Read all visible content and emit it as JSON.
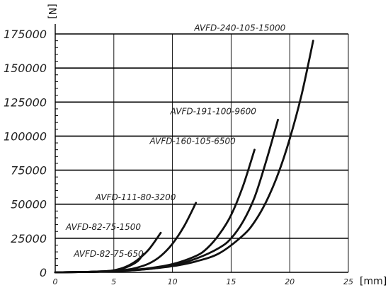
{
  "chart_data": {
    "type": "line",
    "title": "",
    "ylabel": "[N]",
    "xlabel": "[mm]",
    "xlim": [
      0,
      25
    ],
    "ylim": [
      0,
      175000
    ],
    "xticks": [
      0,
      5,
      10,
      15,
      20,
      25
    ],
    "yticks": [
      0,
      25000,
      50000,
      75000,
      100000,
      125000,
      150000,
      175000
    ],
    "ytick_labels": [
      "0",
      "25000",
      "50000",
      "75000",
      "100000",
      "125000",
      "150000",
      "175000"
    ],
    "xtick_labels": [
      "0",
      "5",
      "10",
      "15",
      "20",
      "25"
    ],
    "grid": true,
    "legend": "none",
    "series": [
      {
        "name": "AVFD-82-75-650",
        "x": [
          0,
          2,
          4,
          5,
          6,
          7,
          7.5
        ],
        "y": [
          0,
          200,
          500,
          1200,
          3500,
          8000,
          13500
        ]
      },
      {
        "name": "AVFD-82-75-1500",
        "x": [
          0,
          2,
          4,
          5,
          6,
          7,
          8,
          9
        ],
        "y": [
          0,
          200,
          700,
          1500,
          4000,
          9000,
          17000,
          29000
        ]
      },
      {
        "name": "AVFD-111-80-3200",
        "x": [
          0,
          2,
          4,
          6,
          7,
          8,
          9,
          10,
          11,
          12
        ],
        "y": [
          0,
          200,
          700,
          1800,
          3500,
          6500,
          12000,
          21000,
          34000,
          51000
        ]
      },
      {
        "name": "AVFD-160-105-6500",
        "x": [
          0,
          2,
          4,
          6,
          8,
          10,
          12,
          13,
          14,
          15,
          16,
          17
        ],
        "y": [
          0,
          200,
          600,
          1500,
          3000,
          6000,
          12000,
          18000,
          28000,
          42000,
          63000,
          90000
        ]
      },
      {
        "name": "AVFD-191-100-9600",
        "x": [
          0,
          2,
          4,
          6,
          8,
          10,
          12,
          14,
          15,
          16,
          17,
          18,
          19
        ],
        "y": [
          0,
          200,
          500,
          1200,
          2500,
          5000,
          10000,
          18000,
          25000,
          37000,
          55000,
          82000,
          112000
        ]
      },
      {
        "name": "AVFD-240-105-15000",
        "x": [
          0,
          2,
          4,
          6,
          8,
          10,
          12,
          14,
          16,
          17,
          18,
          19,
          20,
          21,
          22
        ],
        "y": [
          0,
          200,
          500,
          1200,
          2500,
          4500,
          8000,
          14000,
          27000,
          37000,
          52000,
          72000,
          98000,
          130000,
          170000
        ]
      }
    ],
    "annotations": [
      {
        "text": "AVFD-82-75-650",
        "series": 0
      },
      {
        "text": "AVFD-82-75-1500",
        "series": 1
      },
      {
        "text": "AVFD-111-80-3200",
        "series": 2
      },
      {
        "text": "AVFD-160-105-6500",
        "series": 3
      },
      {
        "text": "AVFD-191-100-9600",
        "series": 4
      },
      {
        "text": "AVFD-240-105-15000",
        "series": 5
      }
    ],
    "colors": {
      "line": "#111111",
      "grid": "#000000",
      "background": "#ffffff"
    }
  }
}
